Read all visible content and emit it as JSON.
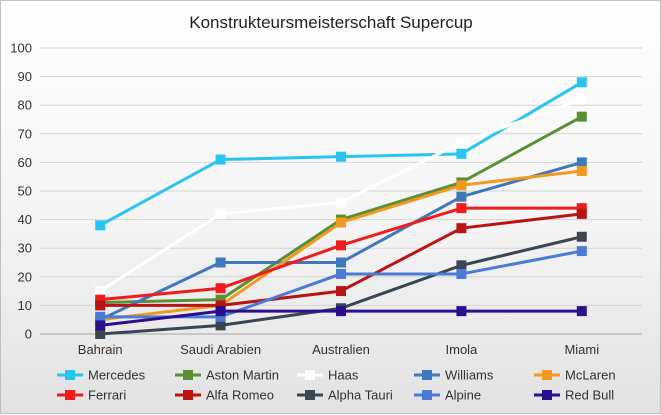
{
  "chart_data": {
    "type": "line",
    "title": "Konstrukteursmeisterschaft Supercup",
    "xlabel": "",
    "ylabel": "",
    "categories": [
      "Bahrain",
      "Saudi Arabien",
      "Australien",
      "Imola",
      "Miami"
    ],
    "ylim": [
      0,
      100
    ],
    "yticks": [
      0,
      10,
      20,
      30,
      40,
      50,
      60,
      70,
      80,
      90,
      100
    ],
    "grid": true,
    "legend_position": "bottom",
    "series": [
      {
        "name": "Mercedes",
        "color": "#29c5f0",
        "values": [
          38,
          61,
          62,
          63,
          88
        ]
      },
      {
        "name": "Aston Martin",
        "color": "#5a8f35",
        "values": [
          11,
          12,
          40,
          53,
          76
        ]
      },
      {
        "name": "Haas",
        "color": "#ffffff",
        "values": [
          15,
          42,
          46,
          67,
          82
        ]
      },
      {
        "name": "Williams",
        "color": "#3f78bb",
        "values": [
          5,
          25,
          25,
          48,
          60
        ]
      },
      {
        "name": "McLaren",
        "color": "#f39a1e",
        "values": [
          5,
          10,
          39,
          52,
          57
        ]
      },
      {
        "name": "Ferrari",
        "color": "#ee1c1c",
        "values": [
          12,
          16,
          31,
          44,
          44
        ]
      },
      {
        "name": "Alfa Romeo",
        "color": "#b81414",
        "values": [
          10,
          10,
          15,
          37,
          42
        ]
      },
      {
        "name": "Alpha Tauri",
        "color": "#3b4653",
        "values": [
          0,
          3,
          9,
          24,
          34
        ]
      },
      {
        "name": "Alpine",
        "color": "#4b7bd4",
        "values": [
          6,
          6,
          21,
          21,
          29
        ]
      },
      {
        "name": "Red Bull",
        "color": "#2c0f8c",
        "values": [
          3,
          8,
          8,
          8,
          8
        ]
      }
    ]
  }
}
